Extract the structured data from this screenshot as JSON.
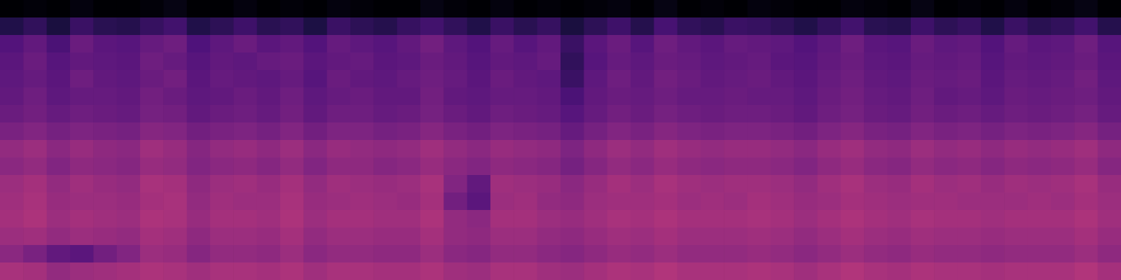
{
  "chart_data": {
    "type": "heatmap",
    "color": "magma",
    "tick_labels": false,
    "clim": [
      0,
      100
    ],
    "cells": [
      [
        0,
        1,
        0,
        2,
        0,
        0,
        1,
        3,
        0,
        0,
        2,
        0,
        1,
        0,
        2,
        1,
        0,
        0,
        3,
        1,
        0,
        2,
        0,
        1,
        0,
        1,
        2,
        0,
        3,
        0,
        1,
        0,
        2,
        1,
        0,
        0,
        2,
        1,
        0,
        3,
        0,
        1,
        0,
        2,
        0,
        1,
        3,
        0
      ],
      [
        14,
        18,
        12,
        20,
        16,
        15,
        19,
        22,
        14,
        17,
        21,
        16,
        18,
        13,
        20,
        17,
        15,
        19,
        22,
        18,
        14,
        20,
        16,
        19,
        12,
        17,
        21,
        15,
        23,
        18,
        16,
        20,
        19,
        17,
        14,
        18,
        22,
        16,
        15,
        21,
        17,
        19,
        14,
        20,
        16,
        18,
        22,
        15
      ],
      [
        26,
        30,
        24,
        32,
        28,
        27,
        31,
        33,
        25,
        29,
        32,
        28,
        30,
        26,
        31,
        29,
        27,
        30,
        34,
        29,
        26,
        31,
        27,
        30,
        20,
        28,
        32,
        27,
        33,
        30,
        28,
        31,
        30,
        29,
        26,
        29,
        33,
        28,
        27,
        32,
        29,
        30,
        26,
        31,
        28,
        29,
        33,
        27
      ],
      [
        28,
        32,
        27,
        30,
        29,
        28,
        33,
        31,
        27,
        30,
        29,
        31,
        32,
        28,
        30,
        31,
        28,
        29,
        32,
        30,
        27,
        30,
        29,
        31,
        18,
        27,
        31,
        29,
        32,
        31,
        29,
        30,
        31,
        28,
        27,
        30,
        32,
        29,
        28,
        31,
        30,
        31,
        27,
        30,
        29,
        30,
        32,
        28
      ],
      [
        29,
        31,
        28,
        33,
        30,
        29,
        32,
        34,
        28,
        31,
        30,
        29,
        31,
        27,
        32,
        30,
        29,
        31,
        33,
        31,
        28,
        32,
        30,
        29,
        20,
        29,
        33,
        30,
        34,
        32,
        30,
        31,
        32,
        30,
        28,
        31,
        33,
        30,
        29,
        32,
        31,
        32,
        28,
        31,
        30,
        31,
        34,
        29
      ],
      [
        30,
        33,
        29,
        31,
        31,
        30,
        34,
        32,
        29,
        30,
        32,
        30,
        33,
        29,
        31,
        32,
        30,
        30,
        34,
        30,
        29,
        31,
        31,
        30,
        24,
        30,
        32,
        31,
        33,
        31,
        31,
        32,
        31,
        31,
        29,
        32,
        34,
        31,
        30,
        33,
        30,
        31,
        29,
        32,
        31,
        32,
        33,
        30
      ],
      [
        32,
        34,
        31,
        33,
        32,
        31,
        35,
        34,
        30,
        32,
        33,
        31,
        34,
        30,
        33,
        33,
        31,
        32,
        35,
        32,
        30,
        33,
        32,
        31,
        27,
        31,
        34,
        32,
        35,
        33,
        32,
        33,
        33,
        32,
        30,
        33,
        35,
        32,
        31,
        34,
        32,
        33,
        31,
        33,
        32,
        33,
        35,
        31
      ],
      [
        36,
        38,
        35,
        37,
        36,
        35,
        39,
        38,
        34,
        36,
        37,
        35,
        38,
        34,
        37,
        37,
        35,
        36,
        39,
        36,
        34,
        37,
        36,
        35,
        31,
        35,
        38,
        36,
        39,
        37,
        36,
        37,
        37,
        36,
        34,
        37,
        39,
        36,
        35,
        38,
        36,
        37,
        35,
        37,
        36,
        37,
        39,
        35
      ],
      [
        42,
        44,
        40,
        43,
        41,
        40,
        45,
        43,
        39,
        42,
        43,
        41,
        44,
        40,
        43,
        42,
        41,
        42,
        45,
        42,
        40,
        43,
        42,
        41,
        37,
        41,
        44,
        42,
        45,
        43,
        42,
        43,
        43,
        42,
        40,
        43,
        45,
        42,
        41,
        44,
        42,
        43,
        41,
        43,
        42,
        43,
        45,
        41
      ],
      [
        40,
        42,
        38,
        41,
        40,
        39,
        43,
        42,
        38,
        40,
        41,
        39,
        42,
        38,
        41,
        41,
        39,
        40,
        43,
        40,
        38,
        41,
        40,
        39,
        35,
        39,
        42,
        40,
        43,
        41,
        40,
        41,
        41,
        40,
        38,
        41,
        43,
        40,
        39,
        42,
        40,
        41,
        39,
        41,
        40,
        41,
        43,
        39
      ],
      [
        44,
        46,
        42,
        45,
        43,
        42,
        47,
        46,
        41,
        44,
        45,
        43,
        46,
        42,
        45,
        44,
        43,
        44,
        47,
        38,
        30,
        45,
        44,
        43,
        40,
        43,
        46,
        44,
        47,
        45,
        44,
        45,
        45,
        44,
        42,
        45,
        47,
        44,
        43,
        46,
        44,
        45,
        43,
        45,
        44,
        45,
        47,
        43
      ],
      [
        45,
        47,
        43,
        44,
        44,
        43,
        46,
        47,
        42,
        45,
        44,
        44,
        47,
        43,
        44,
        45,
        44,
        43,
        46,
        34,
        28,
        44,
        45,
        42,
        41,
        44,
        45,
        45,
        46,
        44,
        45,
        44,
        46,
        45,
        43,
        44,
        46,
        45,
        44,
        45,
        45,
        44,
        44,
        44,
        45,
        44,
        46,
        44
      ],
      [
        46,
        48,
        44,
        46,
        45,
        44,
        48,
        47,
        43,
        46,
        46,
        45,
        48,
        44,
        46,
        46,
        45,
        45,
        48,
        42,
        40,
        46,
        46,
        44,
        43,
        45,
        47,
        46,
        48,
        46,
        46,
        46,
        47,
        46,
        44,
        46,
        48,
        46,
        45,
        47,
        46,
        46,
        45,
        46,
        46,
        46,
        48,
        45
      ],
      [
        44,
        45,
        42,
        44,
        43,
        42,
        46,
        45,
        41,
        44,
        44,
        43,
        46,
        42,
        44,
        44,
        43,
        43,
        46,
        42,
        41,
        44,
        44,
        42,
        41,
        43,
        45,
        44,
        46,
        44,
        44,
        44,
        45,
        44,
        42,
        44,
        46,
        44,
        43,
        45,
        44,
        44,
        43,
        44,
        44,
        44,
        46,
        43
      ],
      [
        40,
        36,
        30,
        28,
        34,
        38,
        44,
        43,
        39,
        42,
        42,
        41,
        44,
        40,
        42,
        42,
        41,
        41,
        44,
        40,
        39,
        42,
        42,
        40,
        39,
        41,
        43,
        42,
        44,
        42,
        42,
        42,
        43,
        42,
        40,
        42,
        44,
        42,
        41,
        43,
        42,
        42,
        41,
        42,
        42,
        42,
        44,
        41
      ],
      [
        47,
        46,
        42,
        44,
        45,
        46,
        48,
        47,
        45,
        47,
        47,
        46,
        48,
        45,
        47,
        47,
        46,
        46,
        48,
        45,
        44,
        47,
        47,
        45,
        44,
        46,
        48,
        47,
        49,
        47,
        47,
        47,
        48,
        47,
        45,
        47,
        49,
        47,
        46,
        48,
        47,
        47,
        46,
        47,
        47,
        47,
        49,
        46
      ]
    ]
  }
}
